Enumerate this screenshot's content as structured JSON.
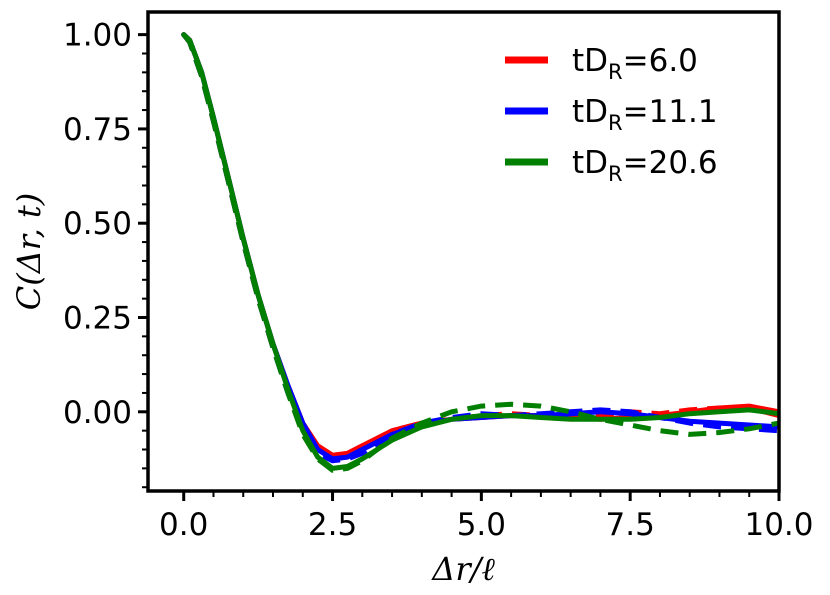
{
  "chart_data": {
    "type": "line",
    "xlabel": "Δr/ℓ",
    "ylabel": "C(Δr, t)",
    "xlim": [
      -0.6,
      10.0
    ],
    "ylim": [
      -0.21,
      1.06
    ],
    "xticks": [
      "0.0",
      "2.5",
      "5.0",
      "7.5",
      "10.0"
    ],
    "xtick_values": [
      0.0,
      2.5,
      5.0,
      7.5,
      10.0
    ],
    "yticks": [
      "0.00",
      "0.25",
      "0.50",
      "0.75",
      "1.00"
    ],
    "ytick_values": [
      0.0,
      0.25,
      0.5,
      0.75,
      1.0
    ],
    "legend_position": "top-right",
    "series": [
      {
        "name": "tD_R=6.0",
        "label_main": "tD",
        "label_sub": "R",
        "label_rest": "=6.0",
        "color": "#ff0000",
        "solid": [
          [
            0,
            1.0
          ],
          [
            0.1,
            0.985
          ],
          [
            0.3,
            0.9
          ],
          [
            0.5,
            0.78
          ],
          [
            0.75,
            0.62
          ],
          [
            1.0,
            0.46
          ],
          [
            1.25,
            0.31
          ],
          [
            1.5,
            0.18
          ],
          [
            1.75,
            0.07
          ],
          [
            2.0,
            -0.03
          ],
          [
            2.25,
            -0.09
          ],
          [
            2.5,
            -0.115
          ],
          [
            2.75,
            -0.11
          ],
          [
            3.0,
            -0.09
          ],
          [
            3.25,
            -0.07
          ],
          [
            3.5,
            -0.05
          ],
          [
            4.0,
            -0.03
          ],
          [
            4.5,
            -0.02
          ],
          [
            5.0,
            -0.015
          ],
          [
            5.5,
            -0.01
          ],
          [
            6.0,
            -0.01
          ],
          [
            6.5,
            -0.015
          ],
          [
            7.0,
            -0.02
          ],
          [
            7.5,
            -0.015
          ],
          [
            8.0,
            -0.01
          ],
          [
            8.5,
            0.0
          ],
          [
            9.0,
            0.01
          ],
          [
            9.5,
            0.015
          ],
          [
            10.0,
            0.0
          ]
        ],
        "dashed": [
          [
            0,
            1.0
          ],
          [
            0.1,
            0.98
          ],
          [
            0.3,
            0.89
          ],
          [
            0.5,
            0.77
          ],
          [
            0.75,
            0.61
          ],
          [
            1.0,
            0.45
          ],
          [
            1.25,
            0.3
          ],
          [
            1.5,
            0.17
          ],
          [
            1.75,
            0.06
          ],
          [
            2.0,
            -0.04
          ],
          [
            2.25,
            -0.1
          ],
          [
            2.5,
            -0.125
          ],
          [
            2.75,
            -0.12
          ],
          [
            3.0,
            -0.1
          ],
          [
            3.25,
            -0.075
          ],
          [
            3.5,
            -0.05
          ],
          [
            4.0,
            -0.03
          ],
          [
            4.5,
            -0.02
          ],
          [
            5.0,
            -0.01
          ],
          [
            5.5,
            -0.005
          ],
          [
            6.0,
            -0.01
          ],
          [
            6.5,
            -0.015
          ],
          [
            7.0,
            -0.01
          ],
          [
            7.5,
            0.0
          ],
          [
            8.0,
            -0.005
          ],
          [
            8.5,
            0.005
          ],
          [
            9.0,
            0.01
          ],
          [
            9.5,
            0.01
          ],
          [
            10.0,
            -0.01
          ]
        ]
      },
      {
        "name": "tD_R=11.1",
        "label_main": "tD",
        "label_sub": "R",
        "label_rest": "=11.1",
        "color": "#0000ff",
        "solid": [
          [
            0,
            1.0
          ],
          [
            0.1,
            0.985
          ],
          [
            0.3,
            0.9
          ],
          [
            0.5,
            0.78
          ],
          [
            0.75,
            0.62
          ],
          [
            1.0,
            0.46
          ],
          [
            1.25,
            0.31
          ],
          [
            1.5,
            0.18
          ],
          [
            1.75,
            0.07
          ],
          [
            2.0,
            -0.03
          ],
          [
            2.25,
            -0.1
          ],
          [
            2.5,
            -0.125
          ],
          [
            2.75,
            -0.12
          ],
          [
            3.0,
            -0.1
          ],
          [
            3.25,
            -0.08
          ],
          [
            3.5,
            -0.06
          ],
          [
            4.0,
            -0.035
          ],
          [
            4.5,
            -0.02
          ],
          [
            5.0,
            -0.015
          ],
          [
            5.5,
            -0.01
          ],
          [
            6.0,
            -0.01
          ],
          [
            6.5,
            -0.005
          ],
          [
            7.0,
            0.0
          ],
          [
            7.5,
            -0.005
          ],
          [
            8.0,
            -0.015
          ],
          [
            8.5,
            -0.025
          ],
          [
            9.0,
            -0.03
          ],
          [
            9.5,
            -0.035
          ],
          [
            10.0,
            -0.04
          ]
        ],
        "dashed": [
          [
            0,
            1.0
          ],
          [
            0.1,
            0.98
          ],
          [
            0.3,
            0.89
          ],
          [
            0.5,
            0.77
          ],
          [
            0.75,
            0.61
          ],
          [
            1.0,
            0.45
          ],
          [
            1.25,
            0.3
          ],
          [
            1.5,
            0.17
          ],
          [
            1.75,
            0.05
          ],
          [
            2.0,
            -0.05
          ],
          [
            2.25,
            -0.11
          ],
          [
            2.5,
            -0.13
          ],
          [
            2.75,
            -0.125
          ],
          [
            3.0,
            -0.11
          ],
          [
            3.25,
            -0.085
          ],
          [
            3.5,
            -0.06
          ],
          [
            4.0,
            -0.03
          ],
          [
            4.5,
            -0.015
          ],
          [
            5.0,
            -0.005
          ],
          [
            5.5,
            -0.01
          ],
          [
            6.0,
            -0.005
          ],
          [
            6.5,
            0.0
          ],
          [
            7.0,
            0.005
          ],
          [
            7.5,
            0.0
          ],
          [
            8.0,
            -0.015
          ],
          [
            8.5,
            -0.03
          ],
          [
            9.0,
            -0.04
          ],
          [
            9.5,
            -0.045
          ],
          [
            10.0,
            -0.05
          ]
        ]
      },
      {
        "name": "tD_R=20.6",
        "label_main": "tD",
        "label_sub": "R",
        "label_rest": "=20.6",
        "color": "#007f00",
        "solid": [
          [
            0,
            1.0
          ],
          [
            0.1,
            0.985
          ],
          [
            0.3,
            0.9
          ],
          [
            0.5,
            0.78
          ],
          [
            0.75,
            0.62
          ],
          [
            1.0,
            0.46
          ],
          [
            1.25,
            0.31
          ],
          [
            1.5,
            0.18
          ],
          [
            1.75,
            0.06
          ],
          [
            2.0,
            -0.05
          ],
          [
            2.25,
            -0.12
          ],
          [
            2.5,
            -0.15
          ],
          [
            2.75,
            -0.145
          ],
          [
            3.0,
            -0.125
          ],
          [
            3.25,
            -0.1
          ],
          [
            3.5,
            -0.075
          ],
          [
            4.0,
            -0.04
          ],
          [
            4.5,
            -0.02
          ],
          [
            5.0,
            -0.01
          ],
          [
            5.5,
            -0.01
          ],
          [
            6.0,
            -0.015
          ],
          [
            6.5,
            -0.02
          ],
          [
            7.0,
            -0.02
          ],
          [
            7.5,
            -0.02
          ],
          [
            8.0,
            -0.015
          ],
          [
            8.5,
            -0.005
          ],
          [
            9.0,
            0.0
          ],
          [
            9.5,
            0.005
          ],
          [
            10.0,
            -0.005
          ]
        ],
        "dashed": [
          [
            0,
            1.0
          ],
          [
            0.1,
            0.98
          ],
          [
            0.3,
            0.89
          ],
          [
            0.5,
            0.77
          ],
          [
            0.75,
            0.61
          ],
          [
            1.0,
            0.45
          ],
          [
            1.25,
            0.3
          ],
          [
            1.5,
            0.17
          ],
          [
            1.75,
            0.05
          ],
          [
            2.0,
            -0.06
          ],
          [
            2.25,
            -0.125
          ],
          [
            2.5,
            -0.155
          ],
          [
            2.75,
            -0.15
          ],
          [
            3.0,
            -0.13
          ],
          [
            3.25,
            -0.1
          ],
          [
            3.5,
            -0.07
          ],
          [
            4.0,
            -0.03
          ],
          [
            4.5,
            0.0
          ],
          [
            5.0,
            0.015
          ],
          [
            5.5,
            0.02
          ],
          [
            6.0,
            0.015
          ],
          [
            6.5,
            0.0
          ],
          [
            7.0,
            -0.02
          ],
          [
            7.5,
            -0.035
          ],
          [
            8.0,
            -0.05
          ],
          [
            8.5,
            -0.06
          ],
          [
            9.0,
            -0.055
          ],
          [
            9.5,
            -0.045
          ],
          [
            10.0,
            -0.03
          ]
        ]
      }
    ]
  }
}
